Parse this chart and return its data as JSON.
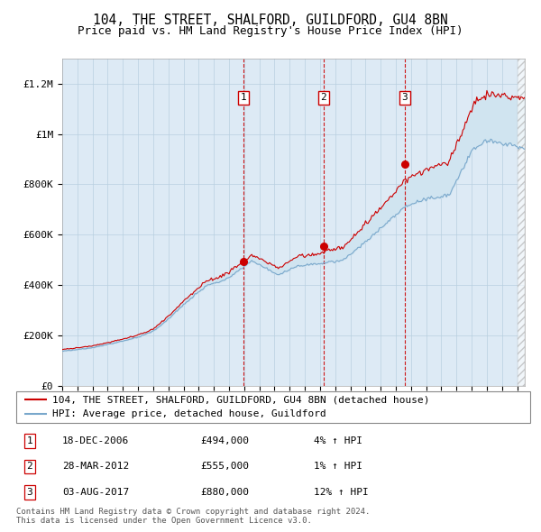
{
  "title": "104, THE STREET, SHALFORD, GUILDFORD, GU4 8BN",
  "subtitle": "Price paid vs. HM Land Registry's House Price Index (HPI)",
  "ylim": [
    0,
    1300000
  ],
  "yticks": [
    0,
    200000,
    400000,
    600000,
    800000,
    1000000,
    1200000
  ],
  "ytick_labels": [
    "£0",
    "£200K",
    "£400K",
    "£600K",
    "£800K",
    "£1M",
    "£1.2M"
  ],
  "xstart": 1995.0,
  "xend": 2025.5,
  "purchase_dates": [
    2006.96,
    2012.24,
    2017.58
  ],
  "purchase_prices": [
    494000,
    555000,
    880000
  ],
  "purchase_labels": [
    "1",
    "2",
    "3"
  ],
  "purchase_info": [
    {
      "num": "1",
      "date": "18-DEC-2006",
      "price": "£494,000",
      "hpi": "4% ↑ HPI"
    },
    {
      "num": "2",
      "date": "28-MAR-2012",
      "price": "£555,000",
      "hpi": "1% ↑ HPI"
    },
    {
      "num": "3",
      "date": "03-AUG-2017",
      "price": "£880,000",
      "hpi": "12% ↑ HPI"
    }
  ],
  "legend_entries": [
    "104, THE STREET, SHALFORD, GUILDFORD, GU4 8BN (detached house)",
    "HPI: Average price, detached house, Guildford"
  ],
  "footer": "Contains HM Land Registry data © Crown copyright and database right 2024.\nThis data is licensed under the Open Government Licence v3.0.",
  "line_color_red": "#cc0000",
  "line_color_blue": "#7aa8cc",
  "fill_color": "#d0e4f0",
  "background_color": "#ddeaf5",
  "grid_color": "#b8cfe0",
  "title_fontsize": 10.5,
  "subtitle_fontsize": 9,
  "tick_fontsize": 8,
  "legend_fontsize": 8
}
